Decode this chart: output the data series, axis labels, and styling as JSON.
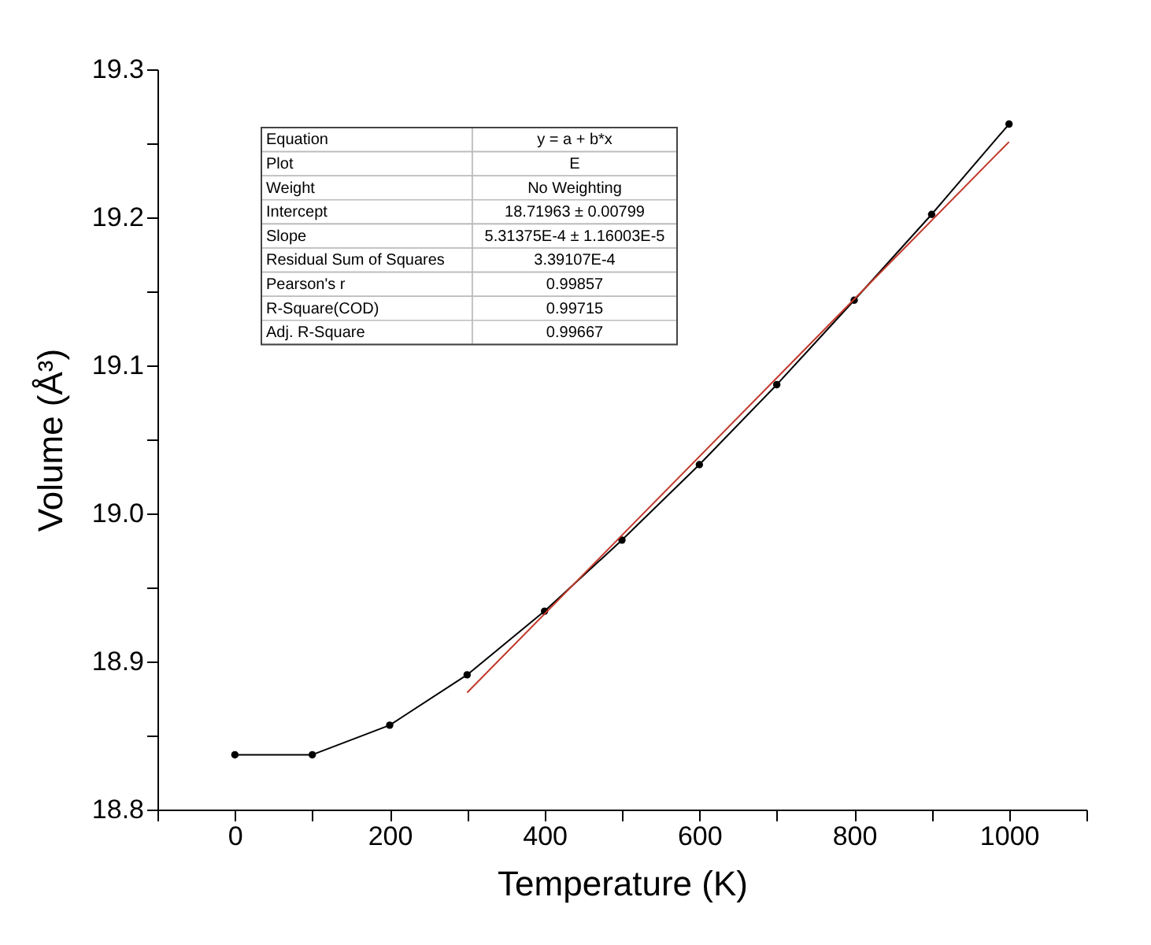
{
  "chart_data": {
    "type": "line",
    "xlabel": "Temperature (K)",
    "ylabel": "Volume (Å³)",
    "xlim": [
      -100,
      1100
    ],
    "ylim": [
      18.8,
      19.3
    ],
    "xticks": [
      {
        "value": -100,
        "label": null
      },
      0,
      {
        "value": 100,
        "label": null
      },
      200,
      {
        "value": 300,
        "label": null
      },
      400,
      {
        "value": 500,
        "label": null
      },
      600,
      {
        "value": 700,
        "label": null
      },
      800,
      {
        "value": 900,
        "label": null
      },
      1000,
      {
        "value": 1100,
        "label": null
      }
    ],
    "yticks": [
      {
        "value": 18.8,
        "label": "18.8"
      },
      {
        "value": 18.85,
        "label": null
      },
      {
        "value": 18.9,
        "label": "18.9"
      },
      {
        "value": 18.95,
        "label": null
      },
      {
        "value": 19.0,
        "label": "19.0"
      },
      {
        "value": 19.05,
        "label": null
      },
      {
        "value": 19.1,
        "label": "19.1"
      },
      {
        "value": 19.15,
        "label": null
      },
      {
        "value": 19.2,
        "label": "19.2"
      },
      {
        "value": 19.25,
        "label": null
      },
      {
        "value": 19.3,
        "label": "19.3"
      }
    ],
    "grid": false,
    "series": [
      {
        "x": [
          0,
          100,
          200,
          300,
          400,
          500,
          600,
          700,
          800,
          900,
          1000
        ],
        "values": [
          18.837,
          18.837,
          18.857,
          18.891,
          18.934,
          18.982,
          19.033,
          19.087,
          19.144,
          19.202,
          19.263
        ],
        "color": "#000000",
        "marker": "circle",
        "line_style": "solid"
      },
      {
        "x": [
          300,
          1000
        ],
        "values": [
          18.879,
          19.251
        ],
        "color": "#c0392b",
        "marker": "none",
        "line_style": "solid"
      }
    ],
    "annotations": [
      "Equation",
      "y = a + b*x",
      "Plot",
      "E",
      "Weight",
      "No Weighting",
      "Intercept",
      "18.71963 ± 0.00799",
      "Slope",
      "5.31375E-4 ± 1.16003E-5",
      "Residual Sum of Squares",
      "3.39107E-4",
      "Pearson's r",
      "0.99857",
      "R-Square(COD)",
      "0.99715",
      "Adj. R-Square",
      "0.99667"
    ]
  }
}
